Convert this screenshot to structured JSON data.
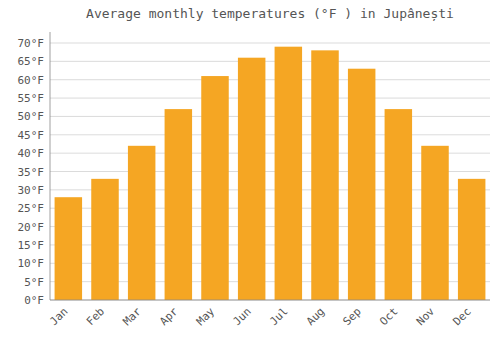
{
  "chart_data": {
    "type": "bar",
    "title": "Average monthly temperatures (°F ) in Jupânești",
    "categories": [
      "Jan",
      "Feb",
      "Mar",
      "Apr",
      "May",
      "Jun",
      "Jul",
      "Aug",
      "Sep",
      "Oct",
      "Nov",
      "Dec"
    ],
    "values": [
      28,
      33,
      42,
      52,
      61,
      66,
      69,
      68,
      63,
      52,
      42,
      33
    ],
    "color": "#F5A623",
    "ylim": [
      0,
      73
    ],
    "yticks": [
      {
        "value": 0,
        "label": "0°F"
      },
      {
        "value": 5,
        "label": "5°F"
      },
      {
        "value": 10,
        "label": "10°F"
      },
      {
        "value": 15,
        "label": "15°F"
      },
      {
        "value": 20,
        "label": "20°F"
      },
      {
        "value": 25,
        "label": "25°F"
      },
      {
        "value": 30,
        "label": "30°F"
      },
      {
        "value": 35,
        "label": "35°F"
      },
      {
        "value": 40,
        "label": "40°F"
      },
      {
        "value": 45,
        "label": "45°F"
      },
      {
        "value": 50,
        "label": "50°F"
      },
      {
        "value": 55,
        "label": "55°F"
      },
      {
        "value": 60,
        "label": "60°F"
      },
      {
        "value": 65,
        "label": "65°F"
      },
      {
        "value": 70,
        "label": "70°F"
      }
    ],
    "grid": true
  }
}
